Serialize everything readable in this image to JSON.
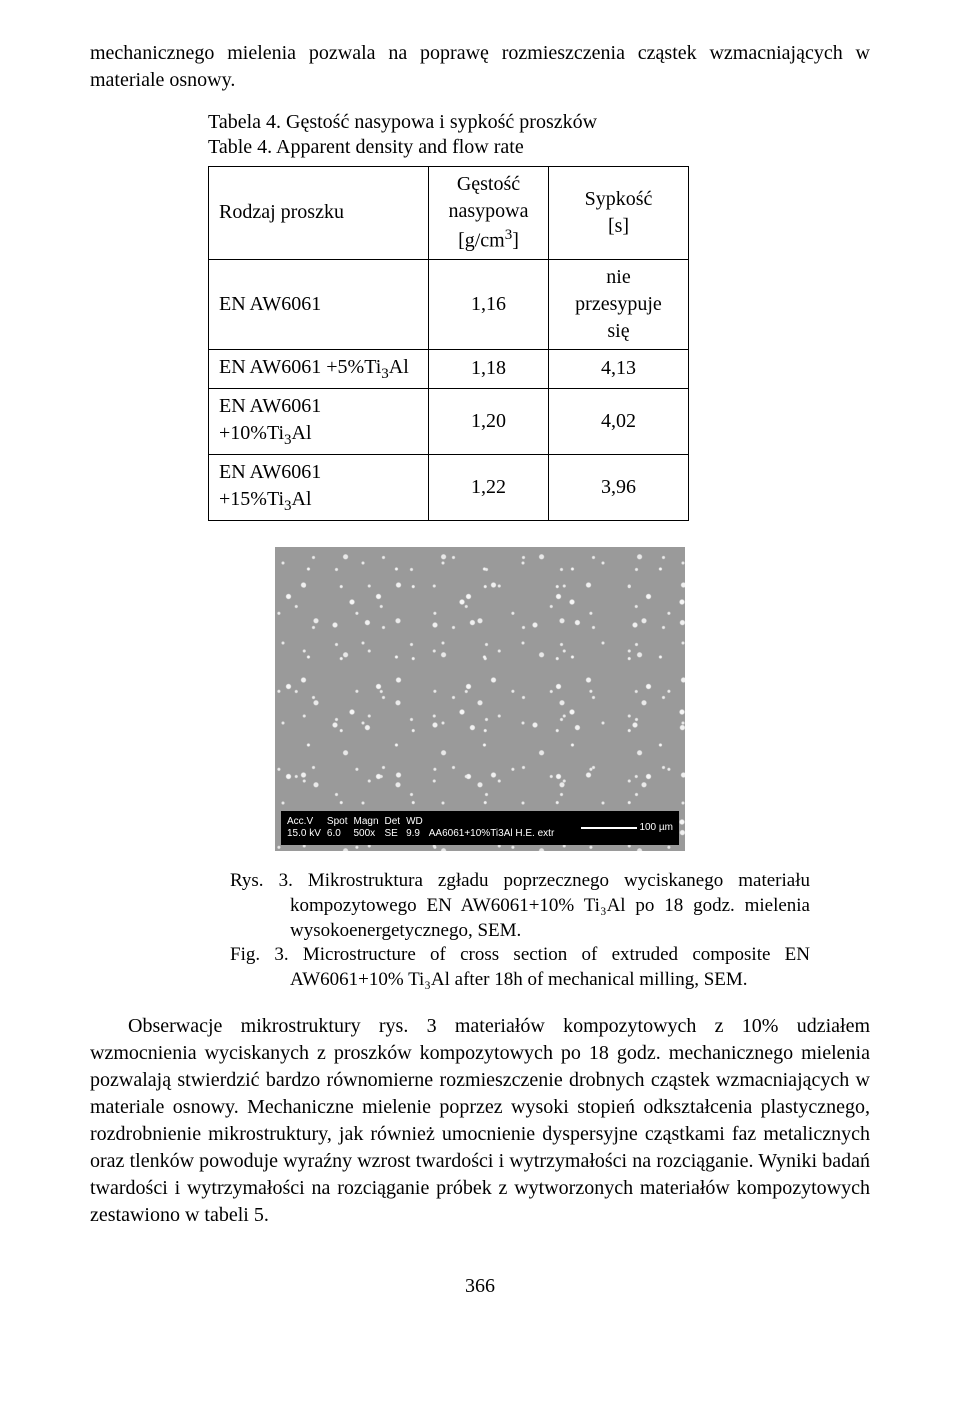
{
  "intro": "mechanicznego mielenia pozwala na poprawę rozmieszczenia cząstek wzmacniających w materiale osnowy.",
  "tabcap_pl": "Tabela 4. Gęstość nasypowa i sypkość proszków",
  "tabcap_en": "Table 4. Apparent density and flow rate",
  "table": {
    "head": {
      "c1": "Rodzaj proszku",
      "c2a": "Gęstość",
      "c2b": "nasypowa",
      "c2c": "[g/cm",
      "c2d": "3",
      "c2e": "]",
      "c3a": "Sypkość",
      "c3b": "[s]"
    },
    "rows": [
      {
        "c1": "EN AW6061",
        "c2": "1,16",
        "c3a": "nie",
        "c3b": "przesypuje",
        "c3c": "się"
      },
      {
        "c1_a": "EN AW6061 +5%Ti",
        "c1_b": "3",
        "c1_c": "Al",
        "c2": "1,18",
        "c3": "4,13"
      },
      {
        "c1_a": "EN AW6061 +10%Ti",
        "c1_b": "3",
        "c1_c": "Al",
        "c2": "1,20",
        "c3": "4,02"
      },
      {
        "c1_a": "EN AW6061 +15%Ti",
        "c1_b": "3",
        "c1_c": "Al",
        "c2": "1,22",
        "c3": "3,96"
      }
    ]
  },
  "sem": {
    "l1a": "Acc.V",
    "l1b": "15.0 kV",
    "l2a": "Spot",
    "l2b": "6.0",
    "l3a": "Magn",
    "l3b": "500x",
    "l4a": "Det",
    "l4b": "SE",
    "l5a": "WD",
    "l5b": "9.9",
    "l6": "AA6061+10%Ti3Al H.E. extr",
    "scale": "100 µm"
  },
  "figcap_pl": "Rys. 3. Mikrostruktura zgładu poprzecznego wyciskanego materiału kompozytowego EN AW6061+10% Ti₃Al po 18 godz. mielenia wysokoenergetycznego, SEM.",
  "figcap_en": "Fig. 3. Microstructure of cross section of extruded composite EN AW6061+10% Ti₃Al after 18h of mechanical milling, SEM.",
  "body": "Obserwacje mikrostruktury rys. 3 materiałów kompozytowych z 10% udziałem wzmocnienia wyciskanych z proszków kompozytowych po 18 godz. mechanicznego mielenia pozwalają stwierdzić bardzo równomierne rozmieszczenie drobnych cząstek wzmacniających w materiale osnowy. Mechaniczne mielenie poprzez wysoki stopień odkształcenia plastycznego, rozdrobnienie mikrostruktury, jak również umocnienie dyspersyjne cząstkami faz metalicznych oraz tlenków powoduje wyraźny wzrost twardości i wytrzymałości na rozciąganie. Wyniki badań twardości i wytrzymałości na rozciąganie próbek z wytworzonych materiałów kompozytowych zestawiono w tabeli 5.",
  "pagenum": "366"
}
